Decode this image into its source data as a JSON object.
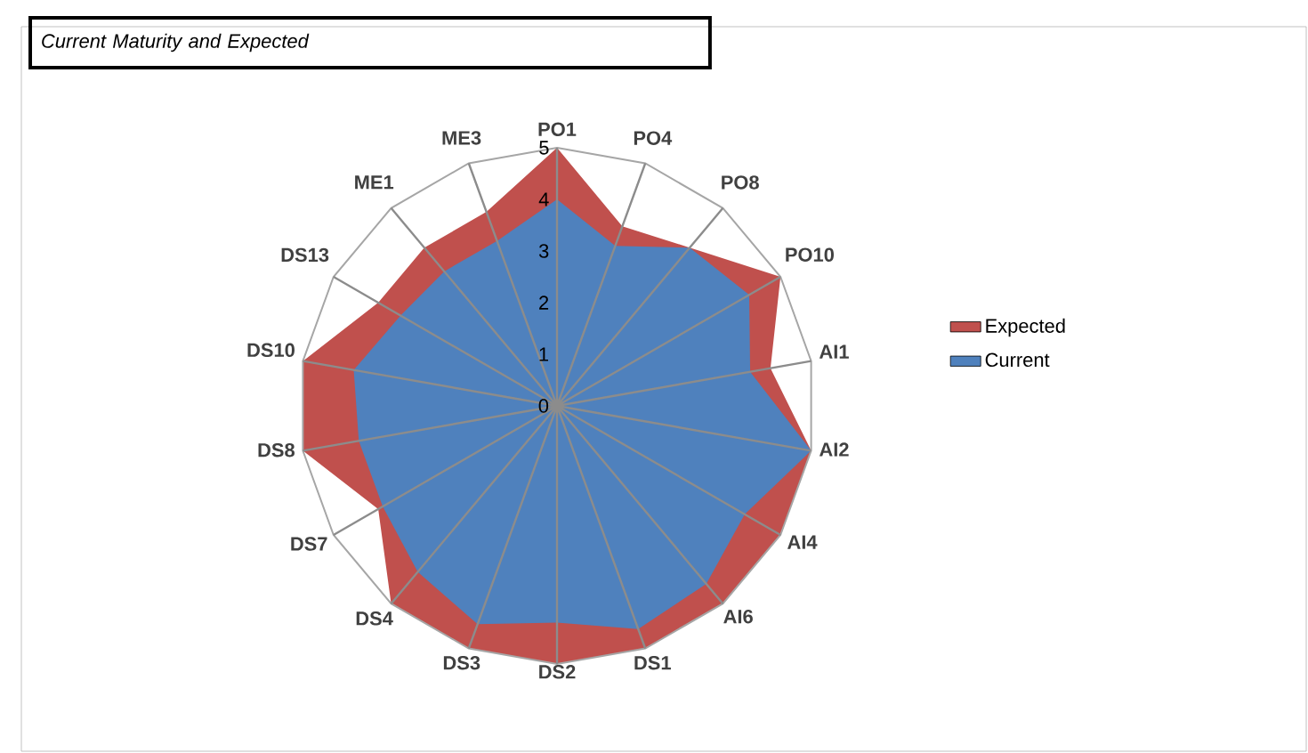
{
  "chart_data": {
    "type": "radar",
    "title": "Current Maturity and Expected",
    "categories": [
      "PO1",
      "PO4",
      "PO8",
      "PO10",
      "AI1",
      "AI2",
      "AI4",
      "AI6",
      "DS1",
      "DS2",
      "DS3",
      "DS4",
      "DS7",
      "DS8",
      "DS10",
      "DS13",
      "ME1",
      "ME3"
    ],
    "series": [
      {
        "name": "Expected",
        "color": "#c0504d",
        "values": [
          5,
          3.7,
          4,
          5,
          4.2,
          5,
          5,
          5,
          5,
          5,
          5,
          5,
          4,
          5,
          5,
          4,
          4,
          4
        ]
      },
      {
        "name": "Current",
        "color": "#4f81bd",
        "values": [
          4,
          3.3,
          4,
          4.3,
          3.8,
          5,
          4.2,
          4.5,
          4.6,
          4.2,
          4.5,
          4.2,
          3.9,
          3.9,
          4,
          3.5,
          3.4,
          3.4
        ]
      }
    ],
    "ylim": [
      0,
      5
    ],
    "yticks": [
      0,
      1,
      2,
      3,
      4,
      5
    ],
    "grid": true,
    "legend": "right"
  }
}
